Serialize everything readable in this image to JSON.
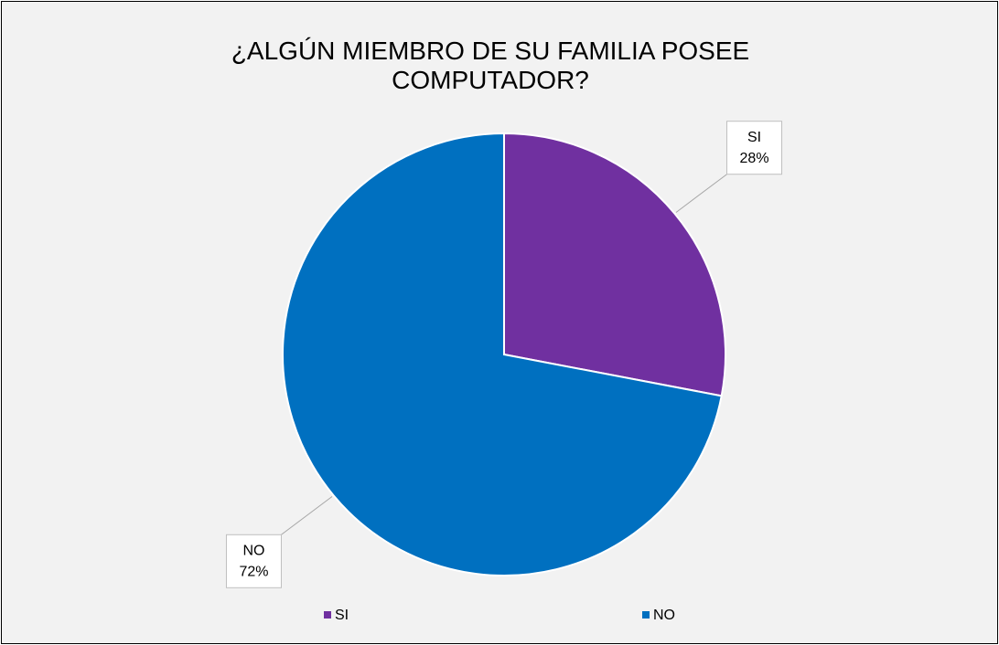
{
  "chart_data": {
    "type": "pie",
    "title": "¿ALGÚN MIEMBRO DE SU FAMILIA POSEE COMPUTADOR?",
    "categories": [
      "SI",
      "NO"
    ],
    "values": [
      28,
      72
    ],
    "value_labels": [
      "28%",
      "72%"
    ],
    "colors": [
      "#7030a0",
      "#0070c0"
    ],
    "legend": "bottom"
  }
}
